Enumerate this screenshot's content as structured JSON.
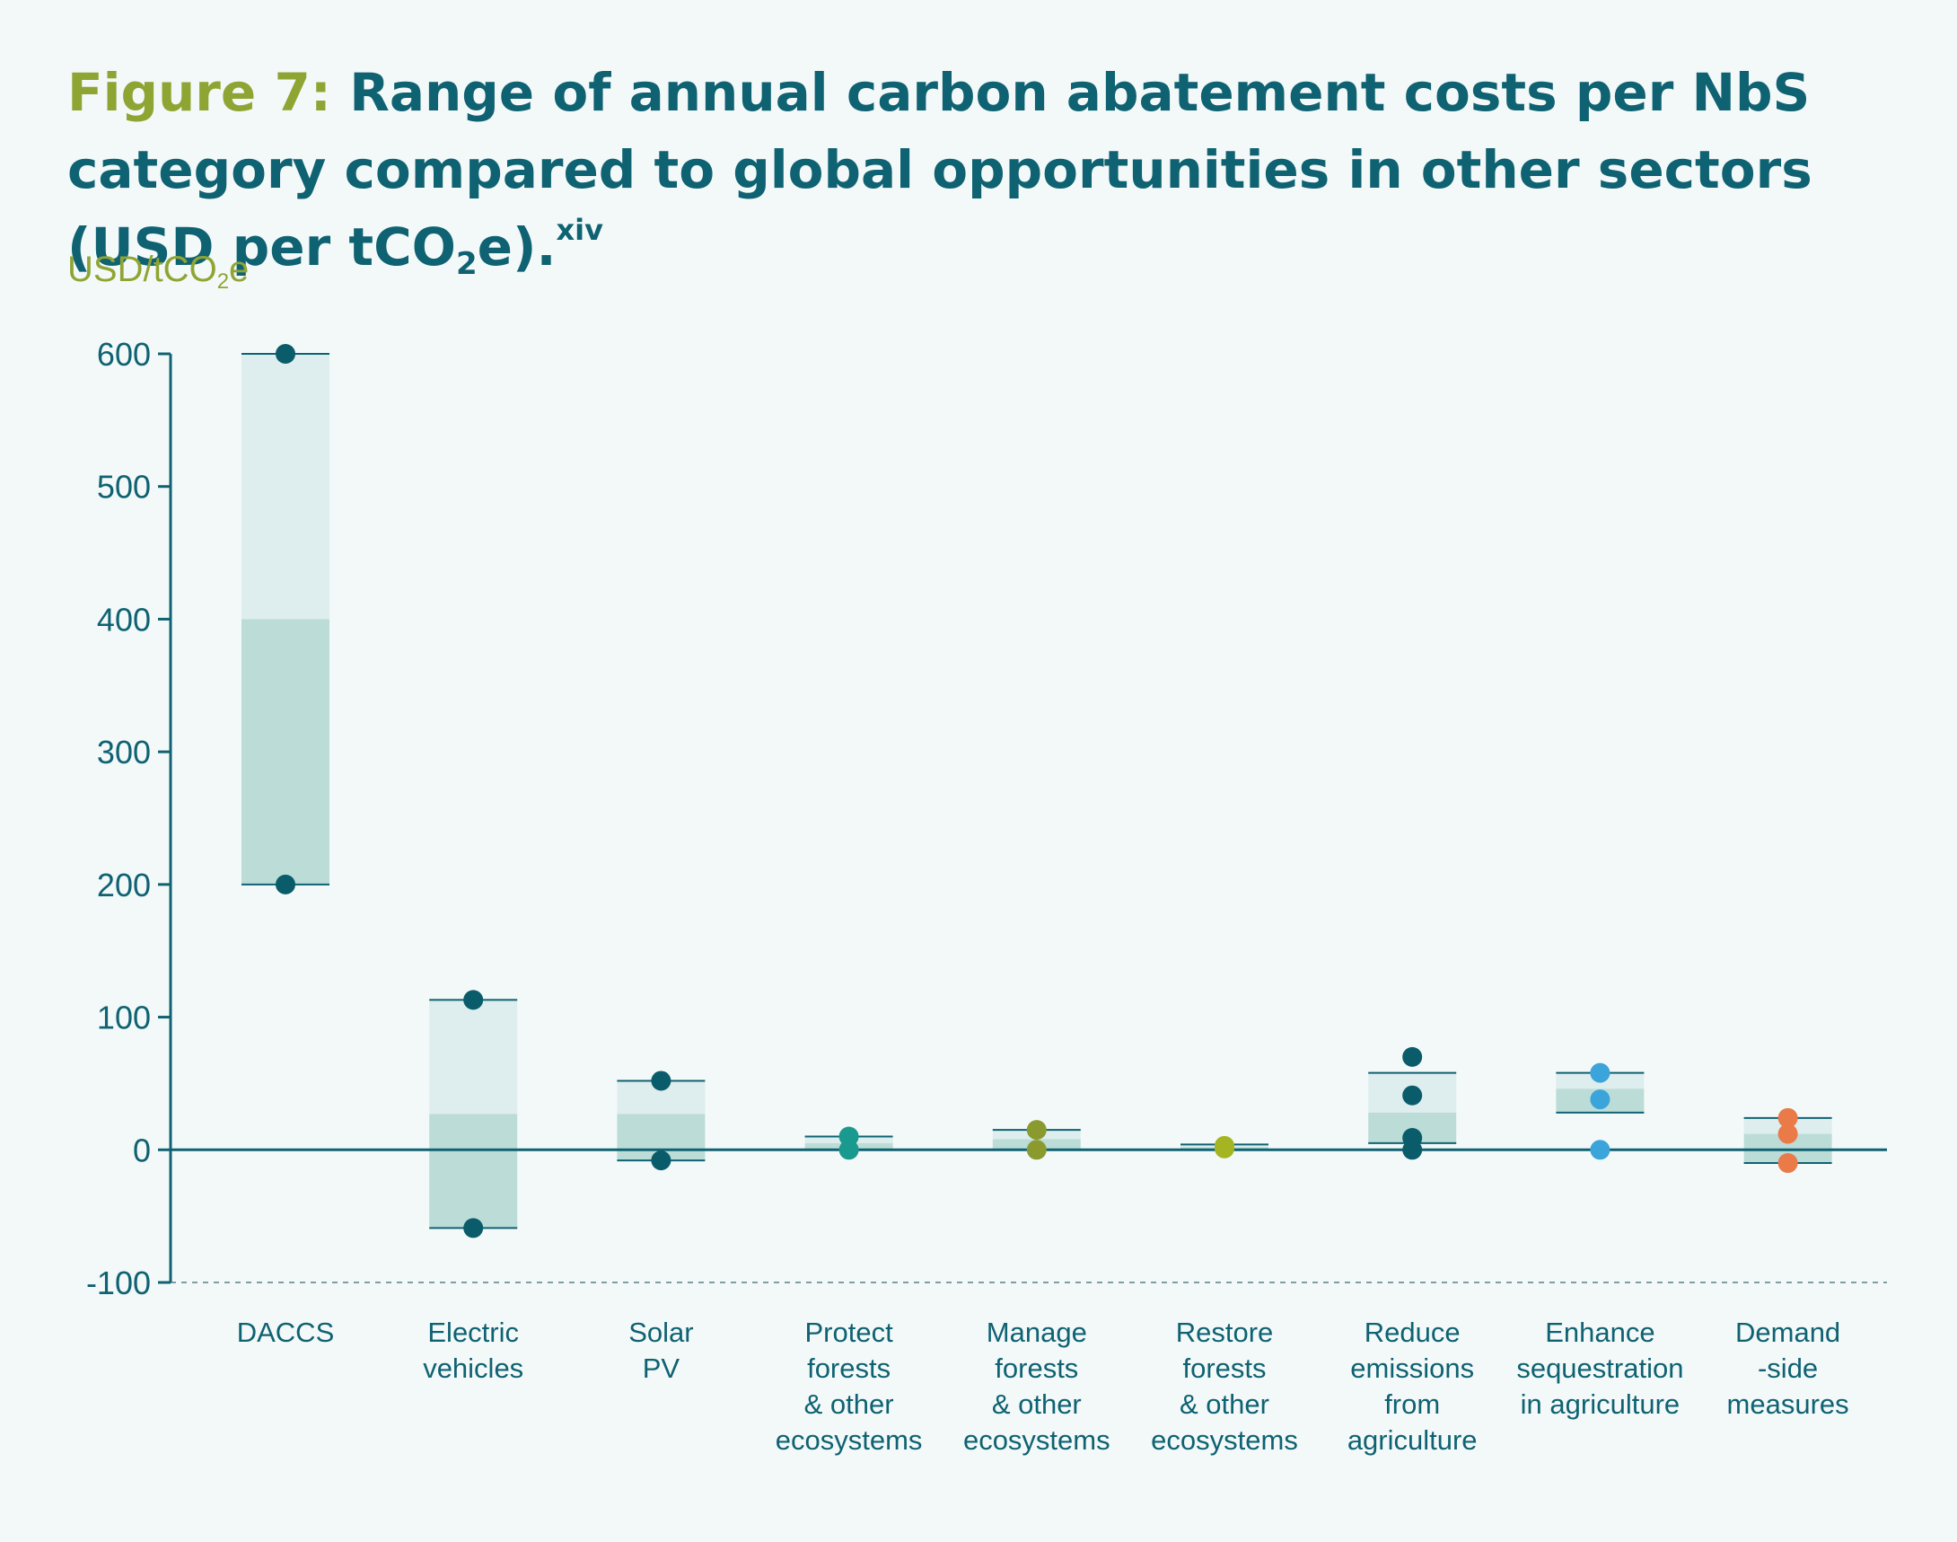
{
  "header": {
    "title_prefix": "Figure 7:",
    "title_main": "Range of annual carbon abatement costs per NbS category compared to global opportunities in other sectors (USD per tCO",
    "title_sub": "2",
    "title_tail": "e).",
    "title_sup": "xiv"
  },
  "unit_label": {
    "main": "USD/tCO",
    "sub": "2",
    "tail": "e"
  },
  "chart_data": {
    "type": "box-range",
    "ylabel": "USD/tCO2e",
    "ylim": [
      -100,
      600
    ],
    "yticks": [
      -100,
      0,
      100,
      200,
      300,
      400,
      500,
      600
    ],
    "grid": false,
    "colors": {
      "axis": "#0f6272",
      "light_band": "#deeded",
      "dark_band": "#bcdcd8",
      "dashed_line": "#7f9ea3"
    },
    "categories": [
      {
        "label": [
          "DACCS"
        ],
        "low": 200,
        "high": 600,
        "split": 400,
        "points": [
          600,
          200
        ],
        "color": "#0a5c6a"
      },
      {
        "label": [
          "Electric",
          "vehicles"
        ],
        "low": -59,
        "high": 113,
        "split": 27,
        "points": [
          113,
          -59
        ],
        "color": "#0a5c6a"
      },
      {
        "label": [
          "Solar",
          "PV"
        ],
        "low": -8,
        "high": 52,
        "split": 27,
        "points": [
          52,
          -8
        ],
        "color": "#0a5c6a"
      },
      {
        "label": [
          "Protect",
          "forests",
          "& other",
          "ecosystems"
        ],
        "low": 0,
        "high": 10,
        "split": 5,
        "points": [
          10,
          0
        ],
        "color": "#1a9a8e"
      },
      {
        "label": [
          "Manage",
          "forests",
          "& other",
          "ecosystems"
        ],
        "low": 0,
        "high": 15,
        "split": 8,
        "points": [
          15,
          0
        ],
        "color": "#8a9a2e"
      },
      {
        "label": [
          "Restore",
          "forests",
          "& other",
          "ecosystems"
        ],
        "low": 0,
        "high": 4,
        "split": 2,
        "points": [
          3,
          1
        ],
        "color": "#a5b522"
      },
      {
        "label": [
          "Reduce",
          "emissions",
          "from",
          "agriculture"
        ],
        "low": 5,
        "high": 58,
        "split": 28,
        "points": [
          70,
          41,
          9,
          0
        ],
        "color": "#0a5c6a"
      },
      {
        "label": [
          "Enhance",
          "sequestration",
          "in agriculture"
        ],
        "low": 28,
        "high": 58,
        "split": 46,
        "points": [
          58,
          38,
          0
        ],
        "color": "#3aa4db"
      },
      {
        "label": [
          "Demand",
          "-side",
          "measures"
        ],
        "low": -10,
        "high": 24,
        "split": 12,
        "points": [
          24,
          12,
          -10
        ],
        "color": "#ea7a48"
      }
    ]
  }
}
